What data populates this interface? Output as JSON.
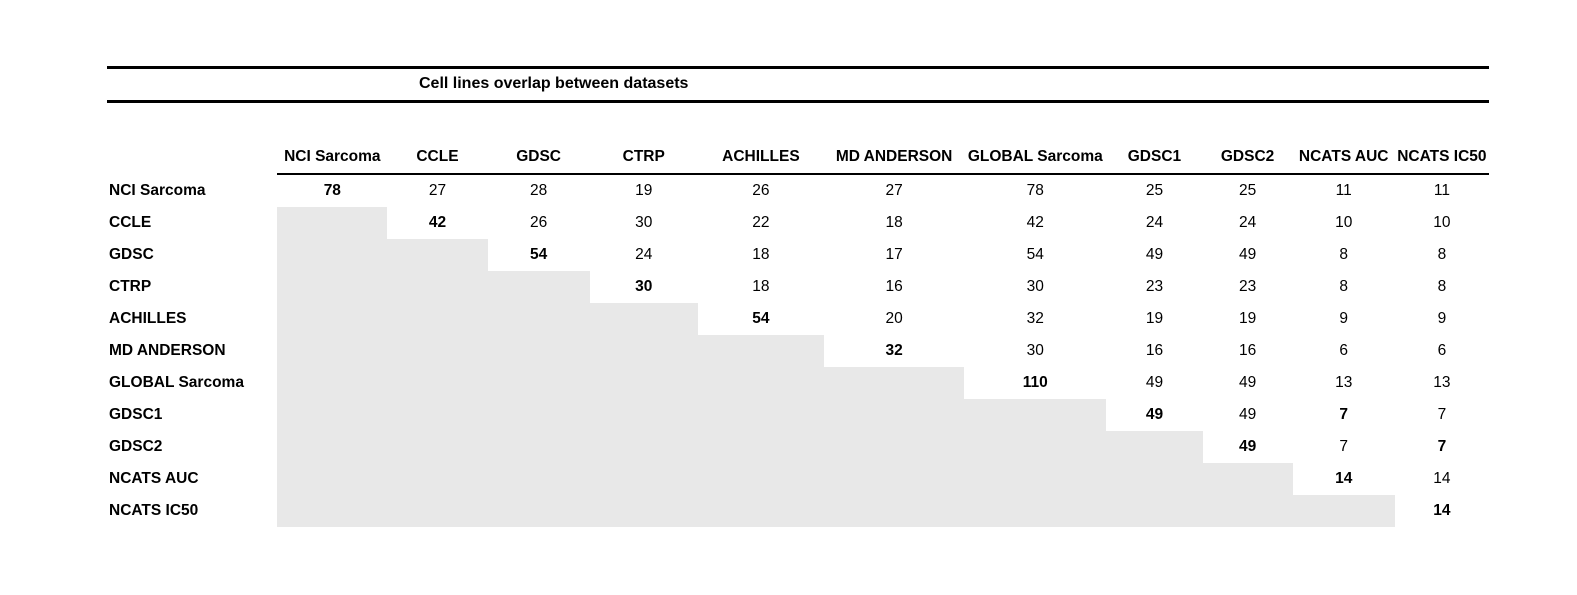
{
  "colors": {
    "shaded_cell": "#e8e8e8",
    "rule": "#000000"
  },
  "chart_data": {
    "type": "table",
    "title": "Cell lines overlap between datasets",
    "columns": [
      "NCI Sarcoma",
      "CCLE",
      "GDSC",
      "CTRP",
      "ACHILLES",
      "MD ANDERSON",
      "GLOBAL Sarcoma",
      "GDSC1",
      "GDSC2",
      "NCATS AUC",
      "NCATS IC50"
    ],
    "rows": [
      {
        "label": "NCI Sarcoma",
        "values": [
          "78",
          "27",
          "28",
          "19",
          "26",
          "27",
          "78",
          "25",
          "25",
          "11",
          "11"
        ]
      },
      {
        "label": "CCLE",
        "values": [
          "",
          "42",
          "26",
          "30",
          "22",
          "18",
          "42",
          "24",
          "24",
          "10",
          "10"
        ]
      },
      {
        "label": "GDSC",
        "values": [
          "",
          "",
          "54",
          "24",
          "18",
          "17",
          "54",
          "49",
          "49",
          "8",
          "8"
        ]
      },
      {
        "label": "CTRP",
        "values": [
          "",
          "",
          "",
          "30",
          "18",
          "16",
          "30",
          "23",
          "23",
          "8",
          "8"
        ]
      },
      {
        "label": "ACHILLES",
        "values": [
          "",
          "",
          "",
          "",
          "54",
          "20",
          "32",
          "19",
          "19",
          "9",
          "9"
        ]
      },
      {
        "label": "MD ANDERSON",
        "values": [
          "",
          "",
          "",
          "",
          "",
          "32",
          "30",
          "16",
          "16",
          "6",
          "6"
        ]
      },
      {
        "label": "GLOBAL Sarcoma",
        "values": [
          "",
          "",
          "",
          "",
          "",
          "",
          "110",
          "49",
          "49",
          "13",
          "13"
        ]
      },
      {
        "label": "GDSC1",
        "values": [
          "",
          "",
          "",
          "",
          "",
          "",
          "",
          "49",
          "49",
          "7",
          "7"
        ]
      },
      {
        "label": "GDSC2",
        "values": [
          "",
          "",
          "",
          "",
          "",
          "",
          "",
          "",
          "49",
          "7",
          "7"
        ]
      },
      {
        "label": "NCATS AUC",
        "values": [
          "",
          "",
          "",
          "",
          "",
          "",
          "",
          "",
          "",
          "14",
          "14"
        ]
      },
      {
        "label": "NCATS IC50",
        "values": [
          "",
          "",
          "",
          "",
          "",
          "",
          "",
          "",
          "",
          "",
          "14"
        ]
      }
    ],
    "bold_cells": [
      [
        0,
        0
      ],
      [
        1,
        1
      ],
      [
        2,
        2
      ],
      [
        3,
        3
      ],
      [
        4,
        4
      ],
      [
        5,
        5
      ],
      [
        6,
        6
      ],
      [
        7,
        7
      ],
      [
        7,
        9
      ],
      [
        8,
        8
      ],
      [
        8,
        10
      ],
      [
        9,
        9
      ],
      [
        10,
        10
      ]
    ],
    "shading": "lower triangle (cells below the diagonal) shaded gray",
    "legend_position": "none",
    "grid": false
  }
}
